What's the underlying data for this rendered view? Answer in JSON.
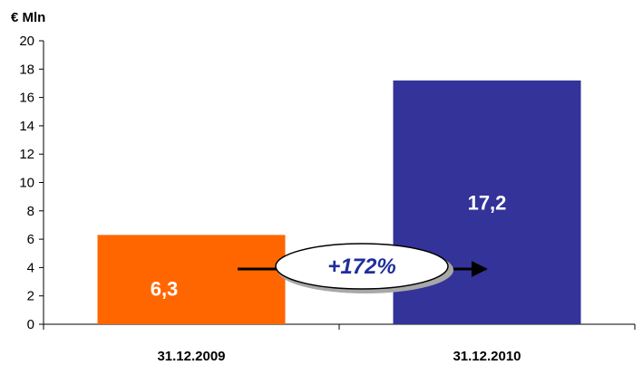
{
  "chart_data": {
    "type": "bar",
    "unit_label": "€ Mln",
    "categories": [
      "31.12.2009",
      "31.12.2010"
    ],
    "values": [
      6.3,
      17.2
    ],
    "value_labels": [
      "6,3",
      "17,2"
    ],
    "colors": [
      "#ff6600",
      "#333399"
    ],
    "ylim": [
      0,
      20
    ],
    "yticks": [
      0,
      2,
      4,
      6,
      8,
      10,
      12,
      14,
      16,
      18,
      20
    ],
    "grid": false,
    "annotation": {
      "text": "+172%",
      "color": "#1f2f9a"
    }
  }
}
